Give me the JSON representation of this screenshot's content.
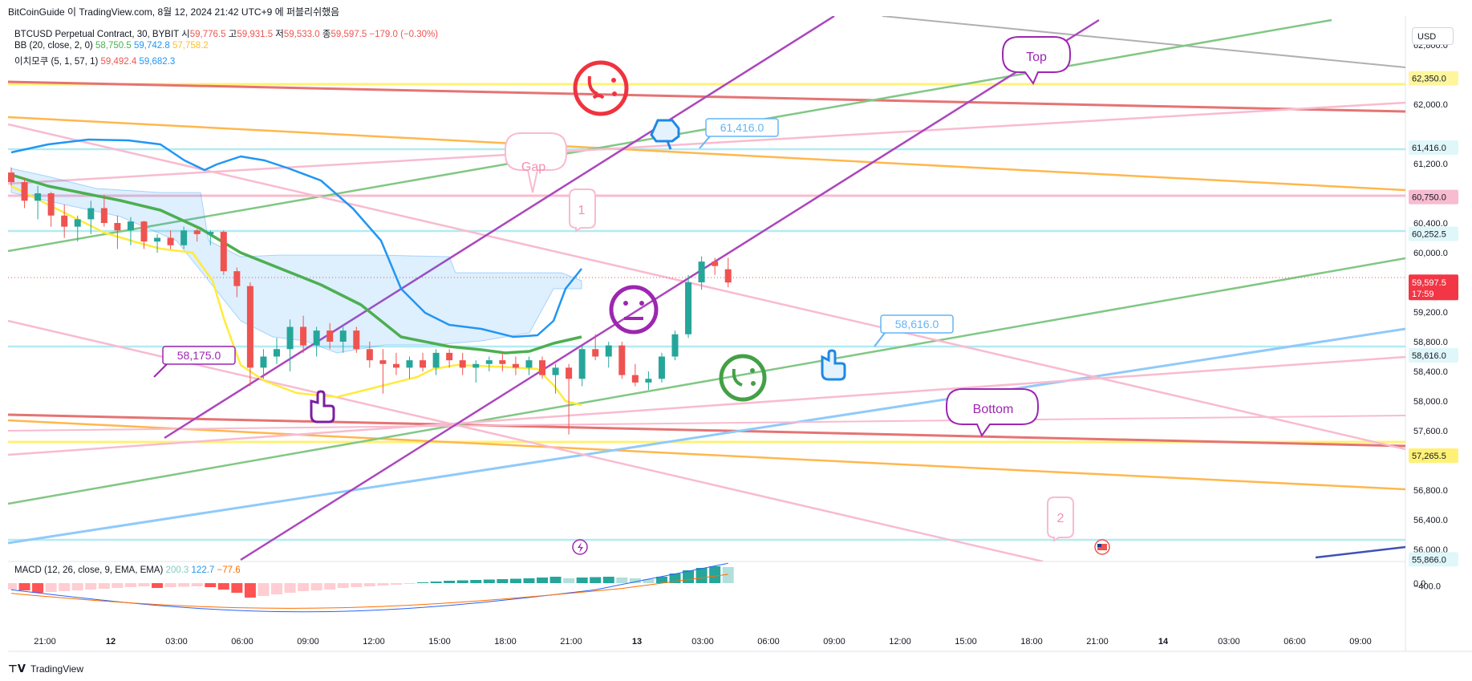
{
  "header": {
    "attribution": "BitCoinGuide 이 TradingView.com, 8월 12, 2024 21:42 UTC+9 에 퍼블리쉬했음"
  },
  "legend": {
    "symbol": "BTCUSD Perpetual Contract, 30, BYBIT",
    "open_label": "시",
    "open": "59,776.5",
    "high_label": "고",
    "high": "59,931.5",
    "low_label": "저",
    "low": "59,533.0",
    "close_label": "종",
    "close": "59,597.5",
    "change": "−179.0 (−0.30%)",
    "bb_label": "BB (20, close, 2, 0)",
    "bb_basis": "58,750.5",
    "bb_upper": "59,742.8",
    "bb_lower": "57,758.2",
    "ichimoku_label": "이치모쿠 (5, 1, 57, 1)",
    "ichimoku_a": "59,492.4",
    "ichimoku_b": "59,682.3"
  },
  "macd_legend": {
    "label": "MACD (12, 26, close, 9, EMA, EMA)",
    "hist": "200.3",
    "macd": "122.7",
    "signal": "−77.6"
  },
  "currency": "USD",
  "annotations": {
    "gap": "Gap",
    "top": "Top",
    "bottom": "Bottom",
    "one": "1",
    "two": "2",
    "price_61416": "61,416.0",
    "price_58616": "58,616.0",
    "price_58175": "58,175.0"
  },
  "footer": {
    "brand": "TradingView"
  },
  "colors": {
    "up": "#26a69a",
    "down": "#ef5350",
    "bb_basis": "#4caf50",
    "bb_upper": "#2196f3",
    "bb_lower": "#ffeb3b",
    "purple": "#ab47bc",
    "orange": "#ff9800",
    "red_line": "#e57373",
    "pink": "#f8bbd0",
    "cyan": "#b2ebf2"
  },
  "chart_data": {
    "type": "candlestick",
    "symbol": "BTCUSD",
    "timeframe": "30",
    "y_axis_ticks": [
      62800,
      62400,
      62000,
      61600,
      61200,
      60800,
      60400,
      60000,
      59600,
      59200,
      58800,
      58400,
      58000,
      57600,
      57200,
      56800,
      56400,
      56000
    ],
    "y_axis_tick_labels": [
      "62,800.0",
      "62,000.0",
      "61,200.0",
      "60,400.0",
      "60,000.0",
      "59,200.0",
      "58,800.0",
      "58,400.0",
      "58,000.0",
      "57,600.0",
      "56,800.0",
      "56,400.0",
      "56,000.0"
    ],
    "y_axis_tick_values": [
      62800,
      62000,
      61200,
      60400,
      60000,
      59200,
      58800,
      58400,
      58000,
      57600,
      56800,
      56400,
      56000
    ],
    "price_tags": [
      {
        "label": "62,350.0",
        "value": 62350,
        "color": "#fff59d"
      },
      {
        "label": "61,416.0",
        "value": 61416,
        "color": "#e0f7fa"
      },
      {
        "label": "60,750.0",
        "value": 60750,
        "color": "#f8bbd0"
      },
      {
        "label": "60,252.5",
        "value": 60252.5,
        "color": "#e0f7fa"
      },
      {
        "label": "58,616.0",
        "value": 58616,
        "color": "#e0f7fa"
      },
      {
        "label": "57,265.5",
        "value": 57265.5,
        "color": "#fff176"
      },
      {
        "label": "55,866.0",
        "value": 55866,
        "color": "#e0f7fa"
      }
    ],
    "last_price": {
      "label": "59,597.5",
      "value": 59597.5,
      "countdown": "17:59"
    },
    "x_axis_labels": [
      "21:00",
      "12",
      "03:00",
      "06:00",
      "09:00",
      "12:00",
      "15:00",
      "18:00",
      "21:00",
      "13",
      "03:00",
      "06:00",
      "09:00",
      "12:00",
      "15:00",
      "18:00",
      "21:00",
      "14",
      "03:00",
      "06:00",
      "09:00"
    ],
    "candles": [
      {
        "o": 61080,
        "h": 61150,
        "l": 60900,
        "c": 60950
      },
      {
        "o": 60950,
        "h": 61000,
        "l": 60600,
        "c": 60700
      },
      {
        "o": 60700,
        "h": 60900,
        "l": 60450,
        "c": 60800
      },
      {
        "o": 60800,
        "h": 60820,
        "l": 60350,
        "c": 60500
      },
      {
        "o": 60500,
        "h": 60650,
        "l": 60200,
        "c": 60350
      },
      {
        "o": 60350,
        "h": 60500,
        "l": 60150,
        "c": 60450
      },
      {
        "o": 60450,
        "h": 60700,
        "l": 60250,
        "c": 60600
      },
      {
        "o": 60600,
        "h": 60780,
        "l": 60350,
        "c": 60400
      },
      {
        "o": 60400,
        "h": 60500,
        "l": 60050,
        "c": 60300
      },
      {
        "o": 60300,
        "h": 60480,
        "l": 60100,
        "c": 60420
      },
      {
        "o": 60420,
        "h": 60430,
        "l": 60050,
        "c": 60150
      },
      {
        "o": 60150,
        "h": 60250,
        "l": 60000,
        "c": 60200
      },
      {
        "o": 60200,
        "h": 60300,
        "l": 60050,
        "c": 60100
      },
      {
        "o": 60100,
        "h": 60350,
        "l": 60050,
        "c": 60300
      },
      {
        "o": 60300,
        "h": 60320,
        "l": 60150,
        "c": 60250
      },
      {
        "o": 60250,
        "h": 60300,
        "l": 60100,
        "c": 60280
      },
      {
        "o": 60280,
        "h": 60300,
        "l": 59700,
        "c": 59750
      },
      {
        "o": 59750,
        "h": 59800,
        "l": 59400,
        "c": 59550
      },
      {
        "o": 59550,
        "h": 59600,
        "l": 58200,
        "c": 58450
      },
      {
        "o": 58450,
        "h": 58700,
        "l": 58300,
        "c": 58600
      },
      {
        "o": 58600,
        "h": 58850,
        "l": 58500,
        "c": 58700
      },
      {
        "o": 58700,
        "h": 59100,
        "l": 58400,
        "c": 59000
      },
      {
        "o": 59000,
        "h": 59150,
        "l": 58650,
        "c": 58750
      },
      {
        "o": 58750,
        "h": 59000,
        "l": 58600,
        "c": 58950
      },
      {
        "o": 58950,
        "h": 59050,
        "l": 58700,
        "c": 58800
      },
      {
        "o": 58800,
        "h": 59000,
        "l": 58650,
        "c": 58950
      },
      {
        "o": 58950,
        "h": 59000,
        "l": 58650,
        "c": 58700
      },
      {
        "o": 58700,
        "h": 58800,
        "l": 58450,
        "c": 58550
      },
      {
        "o": 58550,
        "h": 58700,
        "l": 58100,
        "c": 58500
      },
      {
        "o": 58500,
        "h": 58650,
        "l": 58350,
        "c": 58450
      },
      {
        "o": 58450,
        "h": 58600,
        "l": 58300,
        "c": 58550
      },
      {
        "o": 58550,
        "h": 58650,
        "l": 58400,
        "c": 58450
      },
      {
        "o": 58450,
        "h": 58700,
        "l": 58350,
        "c": 58650
      },
      {
        "o": 58650,
        "h": 58700,
        "l": 58450,
        "c": 58550
      },
      {
        "o": 58550,
        "h": 58650,
        "l": 58350,
        "c": 58450
      },
      {
        "o": 58450,
        "h": 58550,
        "l": 58250,
        "c": 58500
      },
      {
        "o": 58500,
        "h": 58600,
        "l": 58400,
        "c": 58550
      },
      {
        "o": 58550,
        "h": 58650,
        "l": 58400,
        "c": 58500
      },
      {
        "o": 58500,
        "h": 58600,
        "l": 58350,
        "c": 58450
      },
      {
        "o": 58450,
        "h": 58600,
        "l": 58350,
        "c": 58550
      },
      {
        "o": 58550,
        "h": 58600,
        "l": 58300,
        "c": 58350
      },
      {
        "o": 58350,
        "h": 58500,
        "l": 58100,
        "c": 58450
      },
      {
        "o": 58450,
        "h": 58500,
        "l": 57550,
        "c": 58300
      },
      {
        "o": 58300,
        "h": 58750,
        "l": 58200,
        "c": 58700
      },
      {
        "o": 58700,
        "h": 58900,
        "l": 58550,
        "c": 58600
      },
      {
        "o": 58600,
        "h": 58800,
        "l": 58450,
        "c": 58750
      },
      {
        "o": 58750,
        "h": 58800,
        "l": 58300,
        "c": 58350
      },
      {
        "o": 58350,
        "h": 58500,
        "l": 58200,
        "c": 58250
      },
      {
        "o": 58250,
        "h": 58400,
        "l": 58150,
        "c": 58300
      },
      {
        "o": 58300,
        "h": 58650,
        "l": 58250,
        "c": 58600
      },
      {
        "o": 58600,
        "h": 58950,
        "l": 58550,
        "c": 58900
      },
      {
        "o": 58900,
        "h": 59700,
        "l": 58850,
        "c": 59600
      },
      {
        "o": 59600,
        "h": 59950,
        "l": 59500,
        "c": 59880
      },
      {
        "o": 59880,
        "h": 59930,
        "l": 59700,
        "c": 59820
      },
      {
        "o": 59776.5,
        "h": 59931.5,
        "l": 59533,
        "c": 59597.5
      }
    ],
    "macd_axis_ticks": [
      {
        "label": "0.0",
        "value": 0
      },
      {
        "label": "−400.0",
        "value": -400
      }
    ]
  }
}
